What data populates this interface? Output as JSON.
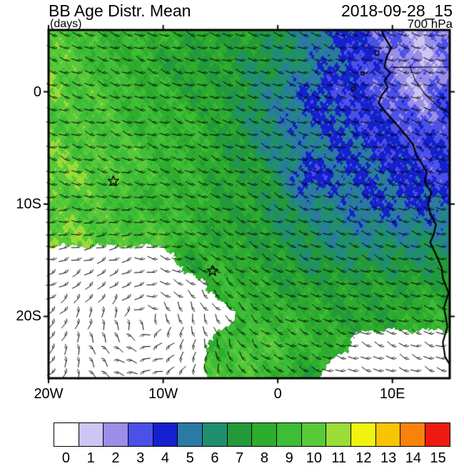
{
  "header": {
    "title": "BB Age Distr. Mean",
    "datetime": "2018-09-28_15",
    "units": "(days)",
    "level": "700 hPa"
  },
  "chart_data": {
    "type": "heatmap",
    "title": "BB Age Distr. Mean",
    "datetime": "2018-09-28_15",
    "units": "days",
    "level": "700 hPa",
    "projection": "lon-lat map of the South Atlantic and West African coast with wind barbs",
    "lon_range": [
      -20,
      15
    ],
    "lat_range": [
      -25.5,
      5.5
    ],
    "x_ticks": [
      {
        "lon": -20,
        "label": "20W"
      },
      {
        "lon": -10,
        "label": "10W"
      },
      {
        "lon": 0,
        "label": "0"
      },
      {
        "lon": 10,
        "label": "10E"
      }
    ],
    "y_ticks": [
      {
        "lat": 0,
        "label": "0"
      },
      {
        "lat": -10,
        "label": "10S"
      },
      {
        "lat": -20,
        "label": "20S"
      }
    ],
    "grid_lons": [
      -20,
      -17.5,
      -15,
      -12.5,
      -10,
      -7.5,
      -5,
      -2.5,
      0,
      2.5,
      5,
      7.5,
      10,
      12.5,
      15
    ],
    "grid_lats": [
      5,
      2.5,
      0,
      -2.5,
      -5,
      -7.5,
      -10,
      -12.5,
      -15,
      -17.5,
      -20,
      -22.5,
      -25
    ],
    "values": [
      [
        10,
        10,
        9,
        9,
        9,
        8,
        8,
        8,
        7,
        6,
        5,
        4,
        3,
        2,
        3
      ],
      [
        11,
        10,
        9,
        9,
        8,
        8,
        8,
        7,
        7,
        6,
        5,
        4,
        3,
        2,
        3
      ],
      [
        11,
        10,
        10,
        9,
        9,
        8,
        8,
        7,
        6,
        5,
        4,
        4,
        3,
        2,
        4
      ],
      [
        10,
        10,
        10,
        9,
        9,
        9,
        8,
        7,
        6,
        5,
        5,
        4,
        4,
        3,
        4
      ],
      [
        11,
        10,
        10,
        10,
        9,
        9,
        8,
        7,
        6,
        6,
        5,
        5,
        4,
        4,
        4
      ],
      [
        11,
        11,
        10,
        10,
        9,
        9,
        8,
        8,
        7,
        4,
        5,
        5,
        5,
        4,
        4
      ],
      [
        10,
        10,
        10,
        9,
        9,
        9,
        8,
        8,
        7,
        6,
        6,
        5,
        5,
        5,
        5
      ],
      [
        11,
        11,
        10,
        10,
        10,
        9,
        8,
        8,
        7,
        7,
        6,
        6,
        6,
        6,
        6
      ],
      [
        0,
        0,
        0,
        0,
        0,
        8,
        9,
        8,
        8,
        7,
        7,
        7,
        7,
        7,
        7
      ],
      [
        0,
        0,
        0,
        0,
        0,
        0,
        9,
        9,
        8,
        8,
        8,
        8,
        8,
        8,
        8
      ],
      [
        0,
        0,
        0,
        0,
        0,
        0,
        0,
        9,
        9,
        9,
        8,
        8,
        8,
        9,
        9
      ],
      [
        0,
        0,
        0,
        0,
        0,
        0,
        9,
        10,
        10,
        9,
        9,
        0,
        0,
        0,
        0
      ],
      [
        0,
        0,
        0,
        0,
        0,
        0,
        10,
        10,
        9,
        8,
        0,
        0,
        0,
        0,
        0
      ]
    ],
    "colorbar": {
      "labels": [
        "0",
        "1",
        "2",
        "3",
        "4",
        "5",
        "6",
        "7",
        "8",
        "9",
        "10",
        "11",
        "12",
        "13",
        "14",
        "15"
      ],
      "colors": [
        "#FFFFFF",
        "#CDC6F2",
        "#9A8EE9",
        "#4B50E8",
        "#1520CE",
        "#2A7AA4",
        "#1F8F70",
        "#239A39",
        "#2EAC2D",
        "#3EBD36",
        "#58CA3A",
        "#9BDC38",
        "#F1F112",
        "#F8C406",
        "#F8820A",
        "#ED1A10"
      ]
    },
    "markers": [
      {
        "type": "star",
        "lon": -14.35,
        "lat": -7.95
      },
      {
        "type": "star",
        "lon": -5.7,
        "lat": -15.95
      }
    ],
    "wind": {
      "style": "barbs",
      "circulation_center": {
        "lon": -11.5,
        "lat": -20.5
      }
    },
    "coastline": [
      [
        9.0,
        5.6
      ],
      [
        9.3,
        4.9
      ],
      [
        9.9,
        3.9
      ],
      [
        9.5,
        3.1
      ],
      [
        9.3,
        2.2
      ],
      [
        9.8,
        1.7
      ],
      [
        9.3,
        1.0
      ],
      [
        9.6,
        0.4
      ],
      [
        9.0,
        -0.4
      ],
      [
        8.8,
        -1.0
      ],
      [
        9.4,
        -1.8
      ],
      [
        10.2,
        -2.7
      ],
      [
        11.2,
        -3.9
      ],
      [
        11.8,
        -4.7
      ],
      [
        12.1,
        -5.7
      ],
      [
        12.4,
        -6.1
      ],
      [
        13.0,
        -7.2
      ],
      [
        12.8,
        -8.0
      ],
      [
        13.4,
        -9.0
      ],
      [
        13.1,
        -9.9
      ],
      [
        13.3,
        -10.9
      ],
      [
        13.8,
        -11.8
      ],
      [
        13.6,
        -12.7
      ],
      [
        13.3,
        -13.4
      ],
      [
        13.9,
        -14.7
      ],
      [
        14.3,
        -15.7
      ],
      [
        14.4,
        -16.6
      ],
      [
        14.9,
        -17.9
      ],
      [
        14.5,
        -19.2
      ],
      [
        14.8,
        -20.9
      ],
      [
        14.4,
        -22.3
      ],
      [
        14.6,
        -23.6
      ],
      [
        15.2,
        -24.6
      ]
    ],
    "borders": [
      [
        [
          9.8,
          2.17
        ],
        [
          11.3,
          2.17
        ],
        [
          13.2,
          2.2
        ],
        [
          15.2,
          2.2
        ]
      ],
      [
        [
          11.5,
          2.3
        ],
        [
          12.0,
          1.0
        ],
        [
          12.9,
          -0.3
        ],
        [
          13.9,
          -1.2
        ],
        [
          15.2,
          -2.1
        ]
      ]
    ],
    "islands": [
      {
        "lon": 8.65,
        "lat": 3.45,
        "r": 3.2
      },
      {
        "lon": 7.4,
        "lat": 1.62,
        "r": 2.2
      },
      {
        "lon": 6.6,
        "lat": 0.25,
        "r": 2.6
      }
    ]
  }
}
